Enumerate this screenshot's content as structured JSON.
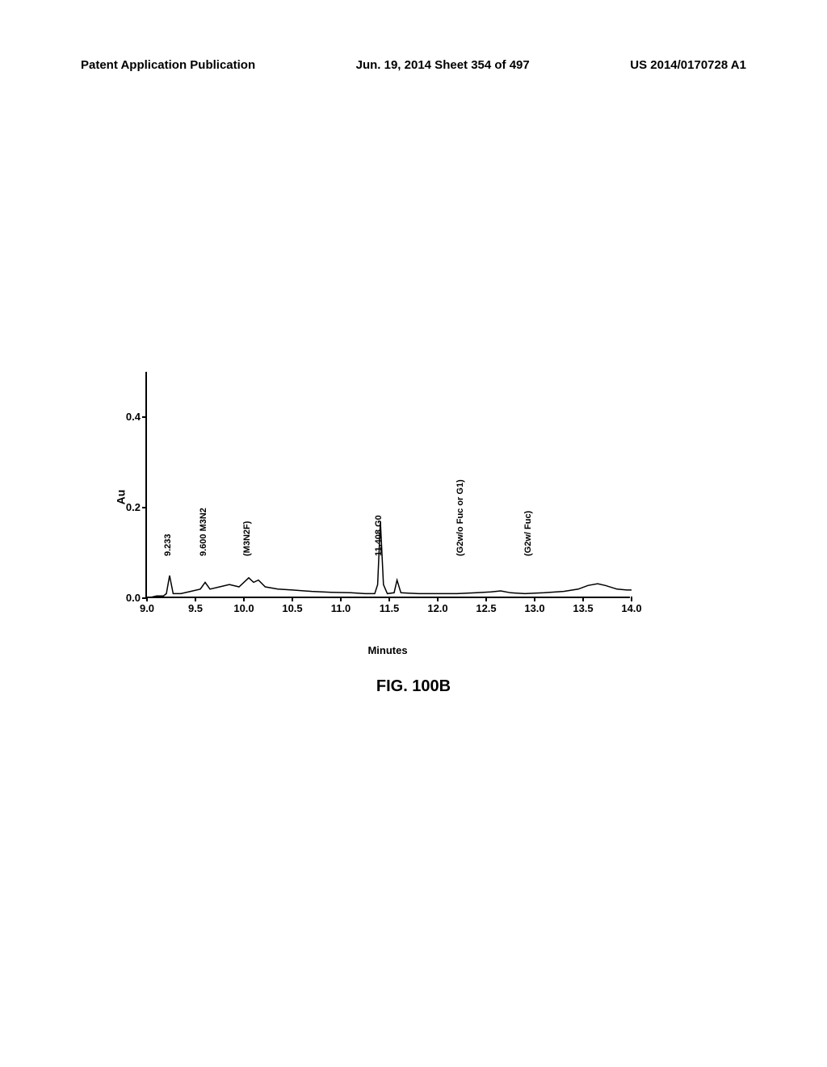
{
  "header": {
    "left": "Patent Application Publication",
    "center": "Jun. 19, 2014  Sheet 354 of 497",
    "right": "US 2014/0170728 A1"
  },
  "figure_caption": "FIG. 100B",
  "chart": {
    "type": "line",
    "y_axis": {
      "title": "Au",
      "min": 0.0,
      "max": 0.5,
      "ticks": [
        0.0,
        0.2,
        0.4
      ]
    },
    "x_axis": {
      "title": "Minutes",
      "min": 9.0,
      "max": 14.0,
      "ticks": [
        9.0,
        9.5,
        10.0,
        10.5,
        11.0,
        11.5,
        12.0,
        12.5,
        13.0,
        13.5,
        14.0
      ]
    },
    "line_color": "#000000",
    "line_width": 1.5,
    "background_color": "#ffffff",
    "peak_labels": [
      {
        "text": "9.233",
        "x": 9.233
      },
      {
        "text": "9.600 M3N2",
        "x": 9.6
      },
      {
        "text": "(M3N2F)",
        "x": 10.05
      },
      {
        "text": "11.408 G0",
        "x": 11.408
      },
      {
        "text": "(G2w/o Fuc or G1)",
        "x": 12.25
      },
      {
        "text": "(G2w/ Fuc)",
        "x": 12.95
      }
    ],
    "trace": [
      [
        9.0,
        0.0
      ],
      [
        9.1,
        0.005
      ],
      [
        9.17,
        0.005
      ],
      [
        9.2,
        0.01
      ],
      [
        9.233,
        0.05
      ],
      [
        9.27,
        0.01
      ],
      [
        9.35,
        0.01
      ],
      [
        9.45,
        0.015
      ],
      [
        9.55,
        0.02
      ],
      [
        9.6,
        0.035
      ],
      [
        9.65,
        0.02
      ],
      [
        9.75,
        0.025
      ],
      [
        9.85,
        0.03
      ],
      [
        9.95,
        0.025
      ],
      [
        10.0,
        0.035
      ],
      [
        10.05,
        0.045
      ],
      [
        10.1,
        0.035
      ],
      [
        10.15,
        0.04
      ],
      [
        10.22,
        0.025
      ],
      [
        10.35,
        0.02
      ],
      [
        10.5,
        0.018
      ],
      [
        10.7,
        0.015
      ],
      [
        10.9,
        0.013
      ],
      [
        11.1,
        0.012
      ],
      [
        11.25,
        0.01
      ],
      [
        11.35,
        0.01
      ],
      [
        11.38,
        0.03
      ],
      [
        11.408,
        0.17
      ],
      [
        11.44,
        0.03
      ],
      [
        11.48,
        0.01
      ],
      [
        11.55,
        0.012
      ],
      [
        11.58,
        0.04
      ],
      [
        11.62,
        0.012
      ],
      [
        11.8,
        0.01
      ],
      [
        12.0,
        0.01
      ],
      [
        12.2,
        0.01
      ],
      [
        12.4,
        0.012
      ],
      [
        12.55,
        0.014
      ],
      [
        12.65,
        0.016
      ],
      [
        12.75,
        0.012
      ],
      [
        12.9,
        0.01
      ],
      [
        13.1,
        0.012
      ],
      [
        13.3,
        0.015
      ],
      [
        13.45,
        0.02
      ],
      [
        13.55,
        0.028
      ],
      [
        13.65,
        0.032
      ],
      [
        13.73,
        0.028
      ],
      [
        13.85,
        0.02
      ],
      [
        13.95,
        0.018
      ],
      [
        14.0,
        0.018
      ]
    ]
  }
}
